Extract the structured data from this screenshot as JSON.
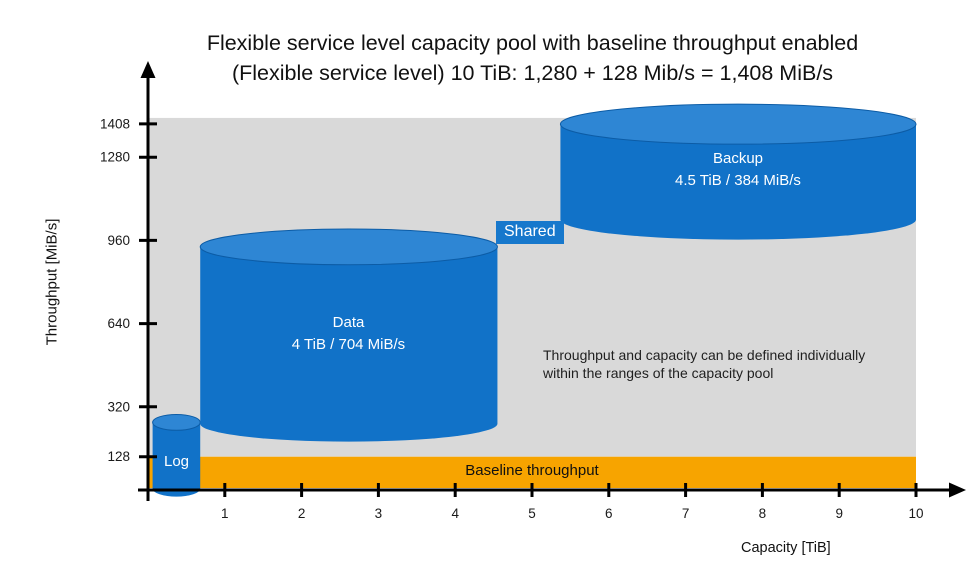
{
  "title": {
    "line1": "Flexible service level capacity pool with baseline throughput enabled",
    "line2": "(Flexible service level) 10 TiB: 1,280 + 128 Mib/s = 1,408 MiB/s"
  },
  "axes": {
    "ylabel": "Throughput [MiB/s]",
    "xlabel": "Capacity [TiB]"
  },
  "colors": {
    "volume_blue": "#1172C8",
    "volume_blue_top": "#2E86D4",
    "volume_outline": "#0C5CA6",
    "shared_blue": "#1778CC",
    "baseline_orange": "#F7A400",
    "pool_gray": "#D9D9D9",
    "axis_black": "#000000",
    "tick_text": "#1a1a1a"
  },
  "chart_data": {
    "type": "diagram",
    "title": "Flexible service level capacity pool with baseline throughput enabled",
    "subtitle": "(Flexible service level) 10 TiB: 1,280 + 128 Mib/s = 1,408 MiB/s",
    "xlabel": "Capacity [TiB]",
    "ylabel": "Throughput [MiB/s]",
    "xlim": [
      0,
      10.5
    ],
    "ylim": [
      0,
      1450
    ],
    "x_ticks": [
      1,
      2,
      3,
      4,
      5,
      6,
      7,
      8,
      9,
      10
    ],
    "y_ticks": [
      128,
      320,
      640,
      960,
      1280,
      1408
    ],
    "pool": {
      "capacity_tib": 10,
      "volume_throughput_mibs": 1280,
      "baseline_throughput_mibs": 128,
      "total_throughput_mibs": 1408
    },
    "pool_region": {
      "from": 128,
      "to": 1408
    },
    "baseline_band": {
      "label": "Baseline throughput",
      "from": 0,
      "to": 128
    },
    "volumes": [
      {
        "label": "Log",
        "sublabel": "",
        "x_start_tib": 0.06,
        "x_end_tib": 0.68,
        "top_mibs": 260,
        "bottom_mibs": 5
      },
      {
        "label": "Data",
        "sublabel": "4 TiB / 704 MiB/s",
        "x_start_tib": 0.68,
        "x_end_tib": 4.55,
        "top_mibs": 935,
        "bottom_mibs": 255
      },
      {
        "label": "Backup",
        "sublabel": "4.5 TiB / 384 MiB/s",
        "x_start_tib": 5.37,
        "x_end_tib": 10,
        "top_mibs": 1407,
        "bottom_mibs": 1040
      }
    ],
    "shared_label": "Shared",
    "note": "Throughput and capacity can be defined individually within the ranges of the capacity pool"
  }
}
